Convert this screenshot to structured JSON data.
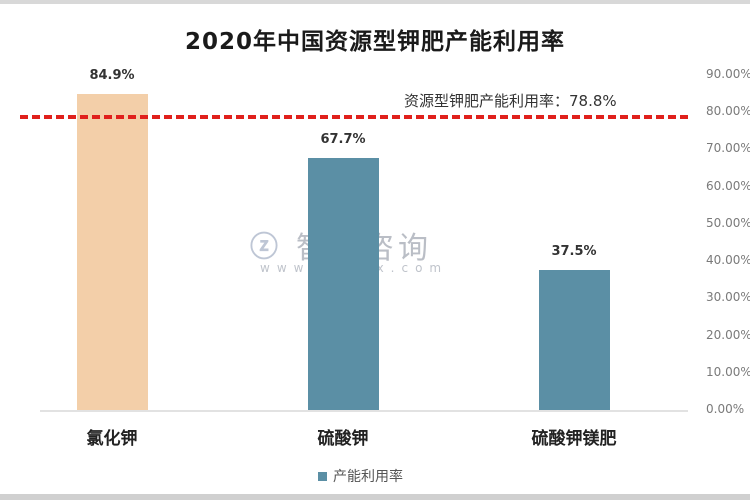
{
  "chart_data": {
    "type": "bar",
    "title": "2020年中国资源型钾肥产能利用率",
    "categories": [
      "氯化钾",
      "硫酸钾",
      "硫酸钾镁肥"
    ],
    "series": [
      {
        "name": "产能利用率",
        "values": [
          84.9,
          67.7,
          37.5
        ],
        "colors": [
          "#f3cfa9",
          "#5b8fa5",
          "#5b8fa5"
        ]
      }
    ],
    "data_labels": [
      "84.9%",
      "67.7%",
      "37.5%"
    ],
    "reference_line": {
      "label": "资源型钾肥产能利用率：78.8%",
      "value": 78.8,
      "color": "#e0201c",
      "style": "dashed"
    },
    "xlabel": "",
    "ylabel": "",
    "ylim": [
      0,
      90
    ],
    "y_axis_position": "right",
    "yticks": [
      "0.00%",
      "10.00%",
      "20.00%",
      "30.00%",
      "40.00%",
      "50.00%",
      "60.00%",
      "70.00%",
      "80.00%",
      "90.00%"
    ],
    "grid": false,
    "legend_position": "bottom"
  },
  "watermark": {
    "name": "智研咨询",
    "url": "www.chyxx.com"
  },
  "legend": {
    "label": "产能利用率",
    "color": "#5b8fa5"
  }
}
